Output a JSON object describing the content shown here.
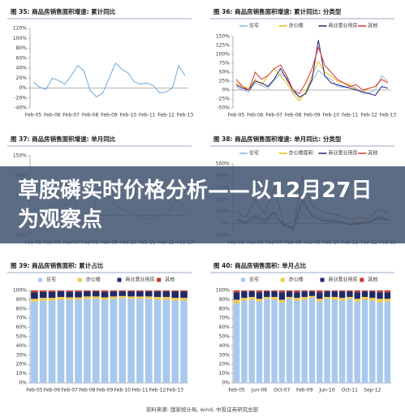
{
  "chart_data": [
    {
      "type": "line",
      "title": "图 35: 商品房销售面积增速: 累计同比",
      "categories": [
        "Feb-05",
        null,
        null,
        "Feb-06",
        null,
        null,
        "Feb-07",
        null,
        null,
        "Feb-08",
        null,
        null,
        "Feb-09",
        null,
        null,
        "Feb-10",
        null,
        null,
        "Feb-11",
        null,
        null,
        "Feb-12",
        null,
        null,
        "Feb-13"
      ],
      "series": [
        {
          "name": null,
          "color": "#6fa8dc",
          "values": [
            12,
            2,
            -3,
            20,
            15,
            8,
            25,
            45,
            35,
            -5,
            -18,
            -10,
            20,
            50,
            38,
            30,
            12,
            8,
            10,
            5,
            -10,
            -8,
            0,
            45,
            25
          ]
        }
      ],
      "ylim": [
        -40,
        120
      ],
      "yticks": [
        {
          "value": 120,
          "label": "120%"
        },
        {
          "value": 100,
          "label": "100%"
        },
        {
          "value": 80,
          "label": "80%"
        },
        {
          "value": 60,
          "label": "60%"
        },
        {
          "value": 40,
          "label": "40%"
        },
        {
          "value": 20,
          "label": "20%"
        },
        {
          "value": 0,
          "label": "0%"
        },
        {
          "value": -20,
          "label": "-20%"
        },
        {
          "value": -40,
          "label": "-40%"
        }
      ]
    },
    {
      "type": "line",
      "title": "图 36: 商品房销售面积增速: 累计同比: 分类型",
      "categories": [
        "Feb-05",
        null,
        null,
        "Feb-06",
        null,
        null,
        "Feb-07",
        null,
        null,
        "Feb-08",
        null,
        null,
        "Feb-09",
        null,
        null,
        "Feb-10",
        null,
        null,
        "Feb-11",
        null,
        null,
        "Feb-12",
        null,
        null,
        "Feb-13"
      ],
      "series": [
        {
          "name": "住宅",
          "color": "#8db3e2",
          "values": [
            10,
            0,
            -5,
            20,
            12,
            5,
            28,
            45,
            35,
            -5,
            -20,
            -10,
            25,
            55,
            40,
            30,
            10,
            8,
            10,
            5,
            -10,
            -8,
            0,
            40,
            25
          ]
        },
        {
          "name": "办公楼",
          "color": "#e8b800",
          "values": [
            20,
            10,
            5,
            30,
            15,
            40,
            60,
            40,
            20,
            -10,
            -30,
            -5,
            40,
            80,
            50,
            40,
            25,
            20,
            15,
            0,
            -5,
            5,
            10,
            30,
            20
          ]
        },
        {
          "name": "商业营业用房",
          "color": "#1f1f7a",
          "values": [
            15,
            5,
            0,
            25,
            20,
            10,
            30,
            60,
            30,
            0,
            -20,
            -10,
            30,
            140,
            40,
            20,
            15,
            10,
            5,
            0,
            -5,
            -10,
            -15,
            10,
            5
          ]
        },
        {
          "name": "其他",
          "color": "#d9342b",
          "values": [
            30,
            10,
            0,
            50,
            30,
            40,
            60,
            70,
            40,
            0,
            -10,
            20,
            60,
            120,
            70,
            50,
            30,
            20,
            10,
            15,
            0,
            5,
            10,
            30,
            20
          ]
        }
      ],
      "ylim": [
        -50,
        150
      ],
      "yticks": [
        {
          "value": 150,
          "label": "150%"
        },
        {
          "value": 125,
          "label": "125%"
        },
        {
          "value": 100,
          "label": "100%"
        },
        {
          "value": 75,
          "label": "75%"
        },
        {
          "value": 50,
          "label": "50%"
        },
        {
          "value": 25,
          "label": "25%"
        },
        {
          "value": 0,
          "label": "0%"
        },
        {
          "value": -25,
          "label": "-25%"
        },
        {
          "value": -50,
          "label": "-50%"
        }
      ]
    },
    {
      "type": "line",
      "title": "图 37: 商品房销售面积增速: 单月同比",
      "categories": [
        "Feb-05",
        null,
        "Feb-06",
        null,
        "Feb-07",
        null,
        "Feb-08",
        null,
        "Feb-09",
        null,
        "Feb-10",
        null,
        "Feb-11",
        null,
        "Feb-12",
        null,
        "Feb-13"
      ],
      "series": [
        {
          "name": null,
          "color": "#6fa8dc",
          "values": [
            20,
            -10,
            30,
            10,
            60,
            -20,
            -30,
            80,
            40,
            20,
            10,
            0,
            -10,
            -5,
            0,
            40,
            20
          ]
        }
      ],
      "ylim": [
        -50,
        150
      ],
      "yticks": [
        {
          "value": 150,
          "label": "150%"
        },
        {
          "value": 100,
          "label": "100%"
        },
        {
          "value": 50,
          "label": "50%"
        },
        {
          "value": 0,
          "label": "0%"
        },
        {
          "value": -50,
          "label": "-50%"
        }
      ]
    },
    {
      "type": "line",
      "title": "图 38: 商品房销售面积增速: 单月同比: 分类型",
      "categories": [
        "Feb-05",
        null,
        "Feb-06",
        null,
        "Feb-07",
        null,
        "Feb-08",
        null,
        "Feb-09",
        null,
        "Feb-10",
        null,
        "Feb-11",
        null,
        "Feb-12",
        null,
        "Feb-13"
      ],
      "series": [
        {
          "name": "住宅",
          "color": "#8db3e2",
          "values": [
            20,
            -10,
            30,
            10,
            60,
            -20,
            -30,
            80,
            40,
            20,
            10,
            0,
            -10,
            -5,
            0,
            40,
            20
          ]
        },
        {
          "name": "办公楼面积",
          "color": "#e8b800",
          "values": [
            50,
            0,
            80,
            40,
            100,
            -30,
            -50,
            150,
            80,
            50,
            30,
            20,
            0,
            10,
            20,
            60,
            40
          ]
        },
        {
          "name": "商业营业用房",
          "color": "#1f1f7a",
          "values": [
            30,
            10,
            60,
            20,
            90,
            -10,
            -40,
            200,
            60,
            30,
            20,
            10,
            -10,
            0,
            10,
            50,
            30
          ]
        },
        {
          "name": "其他",
          "color": "#d9342b",
          "values": [
            100,
            50,
            200,
            80,
            300,
            0,
            -60,
            400,
            150,
            100,
            80,
            60,
            30,
            50,
            40,
            120,
            80
          ]
        }
      ],
      "ylim": [
        -100,
        500
      ],
      "yticks": [
        {
          "value": 500,
          "label": "500%"
        },
        {
          "value": 400,
          "label": "400%"
        },
        {
          "value": 300,
          "label": "300%"
        },
        {
          "value": 200,
          "label": "200%"
        },
        {
          "value": 100,
          "label": "100%"
        },
        {
          "value": 0,
          "label": "0%"
        },
        {
          "value": -100,
          "label": "-100%"
        }
      ]
    },
    {
      "type": "bar",
      "title": "图 39: 商品房销售面积: 累计占比",
      "categories": [
        "Feb-05",
        null,
        "Feb-06",
        null,
        "Feb-07",
        null,
        "Feb-08",
        null,
        "Feb-09",
        null,
        "Feb-10",
        null,
        "Feb-11",
        null,
        "Feb-12",
        null,
        "Feb-13",
        null
      ],
      "series": [
        {
          "name": "住宅",
          "color": "#a9c8ee",
          "values": [
            88,
            89,
            89,
            90,
            90,
            90,
            91,
            91,
            90,
            91,
            92,
            91,
            91,
            91,
            90,
            90,
            89,
            89
          ]
        },
        {
          "name": "办公楼",
          "color": "#f2c94c",
          "values": [
            3,
            3,
            3,
            3,
            2.5,
            2.5,
            2.5,
            2.5,
            2.5,
            2.5,
            2,
            2.5,
            2.5,
            2.5,
            3,
            3,
            3,
            3
          ]
        },
        {
          "name": "商业营业用房",
          "color": "#1f2a6b",
          "values": [
            7,
            6.5,
            6.5,
            6,
            6,
            6,
            5.5,
            5.5,
            6,
            5.5,
            5,
            5.5,
            5.5,
            5.5,
            6,
            6,
            7,
            7
          ]
        },
        {
          "name": "其他",
          "color": "#c0392b",
          "values": [
            2,
            1.5,
            1.5,
            1,
            1.5,
            1.5,
            1,
            1,
            1.5,
            1,
            1,
            1,
            1,
            1,
            1,
            1,
            1,
            1
          ]
        }
      ],
      "ylim": [
        0,
        100
      ],
      "yticks": [
        {
          "value": 100,
          "label": "100%"
        },
        {
          "value": 90,
          "label": "90%"
        },
        {
          "value": 80,
          "label": "80%"
        },
        {
          "value": 70,
          "label": "70%"
        },
        {
          "value": 60,
          "label": "60%"
        },
        {
          "value": 50,
          "label": "50%"
        },
        {
          "value": 40,
          "label": "40%"
        },
        {
          "value": 30,
          "label": "30%"
        },
        {
          "value": 20,
          "label": "20%"
        },
        {
          "value": 10,
          "label": "10%"
        },
        {
          "value": 0,
          "label": "0%"
        }
      ]
    },
    {
      "type": "bar",
      "title": "图 40: 商品房销售面积: 单月占比",
      "categories": [
        "Feb-05",
        null,
        null,
        "Jun-06",
        null,
        null,
        "Oct-07",
        null,
        null,
        "Feb-09",
        null,
        null,
        "Jun-10",
        null,
        null,
        "Oct-11",
        null,
        null,
        "Sep-12",
        null,
        null
      ],
      "series": [
        {
          "name": "住宅",
          "color": "#a9c8ee",
          "values": [
            86,
            89,
            90,
            88,
            91,
            90,
            87,
            91,
            89,
            90,
            92,
            88,
            91,
            90,
            89,
            91,
            88,
            90,
            89,
            87,
            88
          ]
        },
        {
          "name": "办公楼",
          "color": "#f2c94c",
          "values": [
            4,
            3,
            3,
            3,
            2,
            3,
            3,
            2,
            3,
            3,
            2,
            3,
            2,
            3,
            3,
            2,
            3,
            3,
            3,
            4,
            3
          ]
        },
        {
          "name": "商业营业用房",
          "color": "#1f2a6b",
          "values": [
            8,
            7,
            6,
            7,
            6,
            6,
            8,
            6,
            6,
            6,
            5,
            7,
            6,
            6,
            7,
            6,
            7,
            6,
            7,
            7,
            7
          ]
        },
        {
          "name": "其他",
          "color": "#c0392b",
          "values": [
            2,
            1,
            1,
            2,
            1,
            1,
            2,
            1,
            2,
            1,
            1,
            2,
            1,
            1,
            1,
            1,
            2,
            1,
            1,
            2,
            2
          ]
        }
      ],
      "ylim": [
        0,
        100
      ],
      "yticks": [
        {
          "value": 100,
          "label": "100%"
        },
        {
          "value": 90,
          "label": "90%"
        },
        {
          "value": 80,
          "label": "80%"
        },
        {
          "value": 70,
          "label": "70%"
        },
        {
          "value": 60,
          "label": "60%"
        },
        {
          "value": 50,
          "label": "50%"
        },
        {
          "value": 40,
          "label": "40%"
        },
        {
          "value": 30,
          "label": "30%"
        },
        {
          "value": 20,
          "label": "20%"
        },
        {
          "value": 10,
          "label": "10%"
        },
        {
          "value": 0,
          "label": "0%"
        }
      ]
    }
  ],
  "source": "资料来源: 国家统计局, wind, 中投证券研究总部",
  "banner": "草胺磷实时价格分析——以12月27日为观察点"
}
